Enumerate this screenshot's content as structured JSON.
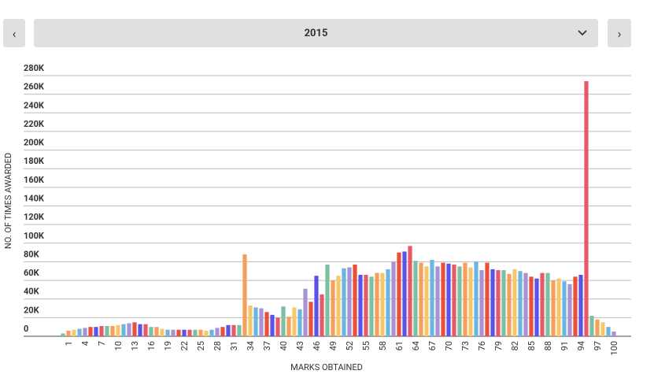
{
  "controls": {
    "year": "2015"
  },
  "chart_data": {
    "type": "bar",
    "y_label": "NO. OF TIMES AWARDED",
    "x_label": "MARKS OBTAINED",
    "categories": [
      null,
      1,
      null,
      null,
      4,
      null,
      null,
      7,
      null,
      null,
      10,
      null,
      null,
      13,
      null,
      null,
      16,
      null,
      null,
      19,
      null,
      null,
      22,
      null,
      null,
      25,
      null,
      null,
      28,
      null,
      null,
      31,
      null,
      null,
      34,
      null,
      null,
      37,
      null,
      null,
      40,
      null,
      null,
      43,
      null,
      null,
      46,
      null,
      null,
      49,
      null,
      null,
      52,
      null,
      null,
      55,
      null,
      null,
      58,
      null,
      null,
      61,
      null,
      null,
      64,
      null,
      null,
      67,
      null,
      null,
      70,
      null,
      null,
      73,
      null,
      null,
      76,
      null,
      null,
      79,
      null,
      null,
      82,
      null,
      null,
      85,
      null,
      null,
      88,
      null,
      null,
      91,
      null,
      null,
      94,
      null,
      null,
      97,
      null,
      null,
      100
    ],
    "values": [
      3000,
      6000,
      7000,
      8000,
      9000,
      10000,
      10000,
      11000,
      11000,
      11000,
      12000,
      13000,
      14000,
      15000,
      13000,
      13000,
      10000,
      10000,
      8000,
      7000,
      7000,
      7000,
      7000,
      7000,
      7000,
      7000,
      6000,
      7000,
      9000,
      10000,
      12000,
      12000,
      12000,
      88000,
      33000,
      31000,
      30000,
      26000,
      23000,
      20000,
      32000,
      21000,
      31000,
      29000,
      51000,
      37000,
      65000,
      45000,
      77000,
      60000,
      65000,
      73000,
      74000,
      77000,
      66000,
      66000,
      64000,
      68000,
      68000,
      72000,
      80000,
      90000,
      91000,
      97000,
      81000,
      79000,
      75000,
      82000,
      75000,
      79000,
      78000,
      77000,
      75000,
      79000,
      74000,
      80000,
      71000,
      79000,
      72000,
      71000,
      71000,
      67000,
      72000,
      70000,
      68000,
      64000,
      62000,
      68000,
      68000,
      60000,
      62000,
      59000,
      56000,
      64000,
      66000,
      274000,
      22000,
      18000,
      15000,
      10000,
      5000
    ],
    "colors": [
      "#7cc0a0",
      "#f4a05a",
      "#f6c86a",
      "#6bb5e0",
      "#a593d6",
      "#e8503a",
      "#5a52e8",
      "#e55a6a"
    ],
    "ylim": [
      0,
      280000
    ],
    "yticks": [
      0,
      {
        "value": 20000,
        "label": "20K"
      },
      {
        "value": 40000,
        "label": "40K"
      },
      {
        "value": 60000,
        "label": "60K"
      },
      {
        "value": 80000,
        "label": "80K"
      },
      {
        "value": 100000,
        "label": "100K"
      },
      {
        "value": 120000,
        "label": "120K"
      },
      {
        "value": 140000,
        "label": "140K"
      },
      {
        "value": 160000,
        "label": "160K"
      },
      {
        "value": 180000,
        "label": "180K"
      },
      {
        "value": 200000,
        "label": "200K"
      },
      {
        "value": 220000,
        "label": "220K"
      },
      {
        "value": 240000,
        "label": "240K"
      },
      {
        "value": 260000,
        "label": "260K"
      },
      {
        "value": 280000,
        "label": "280K"
      }
    ],
    "grid": true
  }
}
